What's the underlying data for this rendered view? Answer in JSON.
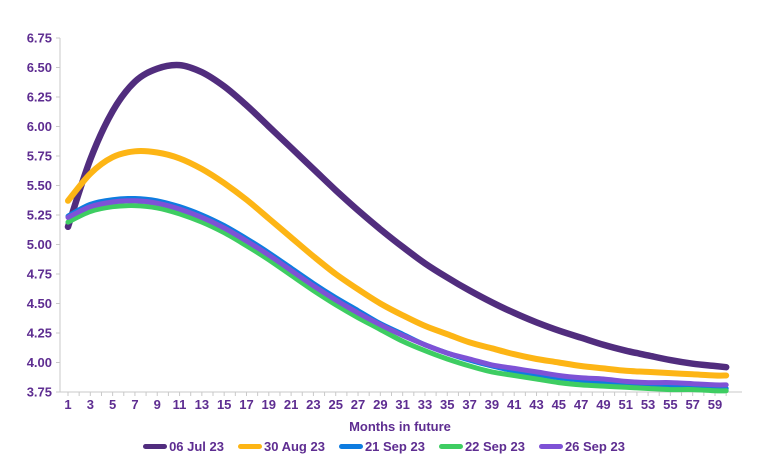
{
  "styles": {
    "text_color": "#5e2d91",
    "axis_color": "#c9c9c9",
    "background": "#ffffff"
  },
  "chart_data": {
    "type": "line",
    "title": "",
    "xlabel": "Months in future",
    "ylabel": "",
    "xlim": [
      1,
      60
    ],
    "ylim": [
      3.75,
      6.75
    ],
    "grid": false,
    "legend_position": "bottom",
    "x_tick_labels": [
      1,
      3,
      5,
      7,
      9,
      11,
      13,
      15,
      17,
      19,
      21,
      23,
      25,
      27,
      29,
      31,
      33,
      35,
      37,
      39,
      41,
      43,
      45,
      47,
      49,
      51,
      53,
      55,
      57,
      59
    ],
    "y_ticks": [
      3.75,
      4.0,
      4.25,
      4.5,
      4.75,
      5.0,
      5.25,
      5.5,
      5.75,
      6.0,
      6.25,
      6.5,
      6.75
    ],
    "x": [
      1,
      3,
      5,
      7,
      9,
      11,
      13,
      15,
      17,
      19,
      21,
      23,
      25,
      27,
      29,
      31,
      33,
      35,
      37,
      39,
      41,
      43,
      45,
      47,
      49,
      51,
      53,
      55,
      57,
      59,
      60
    ],
    "series": [
      {
        "name": "06 Jul 23",
        "color": "#512d7e",
        "stroke_width": 6.5,
        "values": [
          5.15,
          5.72,
          6.13,
          6.38,
          6.49,
          6.52,
          6.46,
          6.34,
          6.18,
          6.0,
          5.82,
          5.64,
          5.46,
          5.29,
          5.13,
          4.98,
          4.84,
          4.72,
          4.61,
          4.51,
          4.42,
          4.34,
          4.27,
          4.21,
          4.15,
          4.1,
          4.06,
          4.02,
          3.99,
          3.97,
          3.96
        ]
      },
      {
        "name": "30 Aug 23",
        "color": "#fdb515",
        "stroke_width": 6,
        "values": [
          5.37,
          5.6,
          5.74,
          5.79,
          5.78,
          5.73,
          5.64,
          5.52,
          5.38,
          5.22,
          5.06,
          4.9,
          4.75,
          4.62,
          4.5,
          4.4,
          4.31,
          4.24,
          4.17,
          4.12,
          4.07,
          4.03,
          4.0,
          3.97,
          3.95,
          3.93,
          3.92,
          3.91,
          3.9,
          3.89,
          3.89
        ]
      },
      {
        "name": "21 Sep 23",
        "color": "#0e7ce0",
        "stroke_width": 5,
        "values": [
          5.24,
          5.34,
          5.38,
          5.39,
          5.37,
          5.32,
          5.25,
          5.16,
          5.05,
          4.93,
          4.8,
          4.67,
          4.55,
          4.44,
          4.33,
          4.24,
          4.15,
          4.08,
          4.02,
          3.97,
          3.93,
          3.9,
          3.87,
          3.85,
          3.83,
          3.82,
          3.81,
          3.8,
          3.79,
          3.78,
          3.78
        ]
      },
      {
        "name": "22 Sep 23",
        "color": "#3ecd62",
        "stroke_width": 5,
        "values": [
          5.19,
          5.28,
          5.32,
          5.33,
          5.31,
          5.26,
          5.19,
          5.1,
          4.99,
          4.87,
          4.74,
          4.61,
          4.49,
          4.38,
          4.28,
          4.18,
          4.1,
          4.03,
          3.97,
          3.92,
          3.89,
          3.86,
          3.83,
          3.81,
          3.8,
          3.79,
          3.78,
          3.77,
          3.77,
          3.76,
          3.76
        ]
      },
      {
        "name": "26 Sep 23",
        "color": "#7e52d6",
        "stroke_width": 5,
        "values": [
          5.23,
          5.32,
          5.36,
          5.37,
          5.35,
          5.3,
          5.23,
          5.14,
          5.03,
          4.91,
          4.78,
          4.65,
          4.53,
          4.42,
          4.32,
          4.23,
          4.15,
          4.08,
          4.03,
          3.98,
          3.95,
          3.92,
          3.89,
          3.87,
          3.86,
          3.84,
          3.83,
          3.83,
          3.82,
          3.81,
          3.81
        ]
      }
    ]
  }
}
